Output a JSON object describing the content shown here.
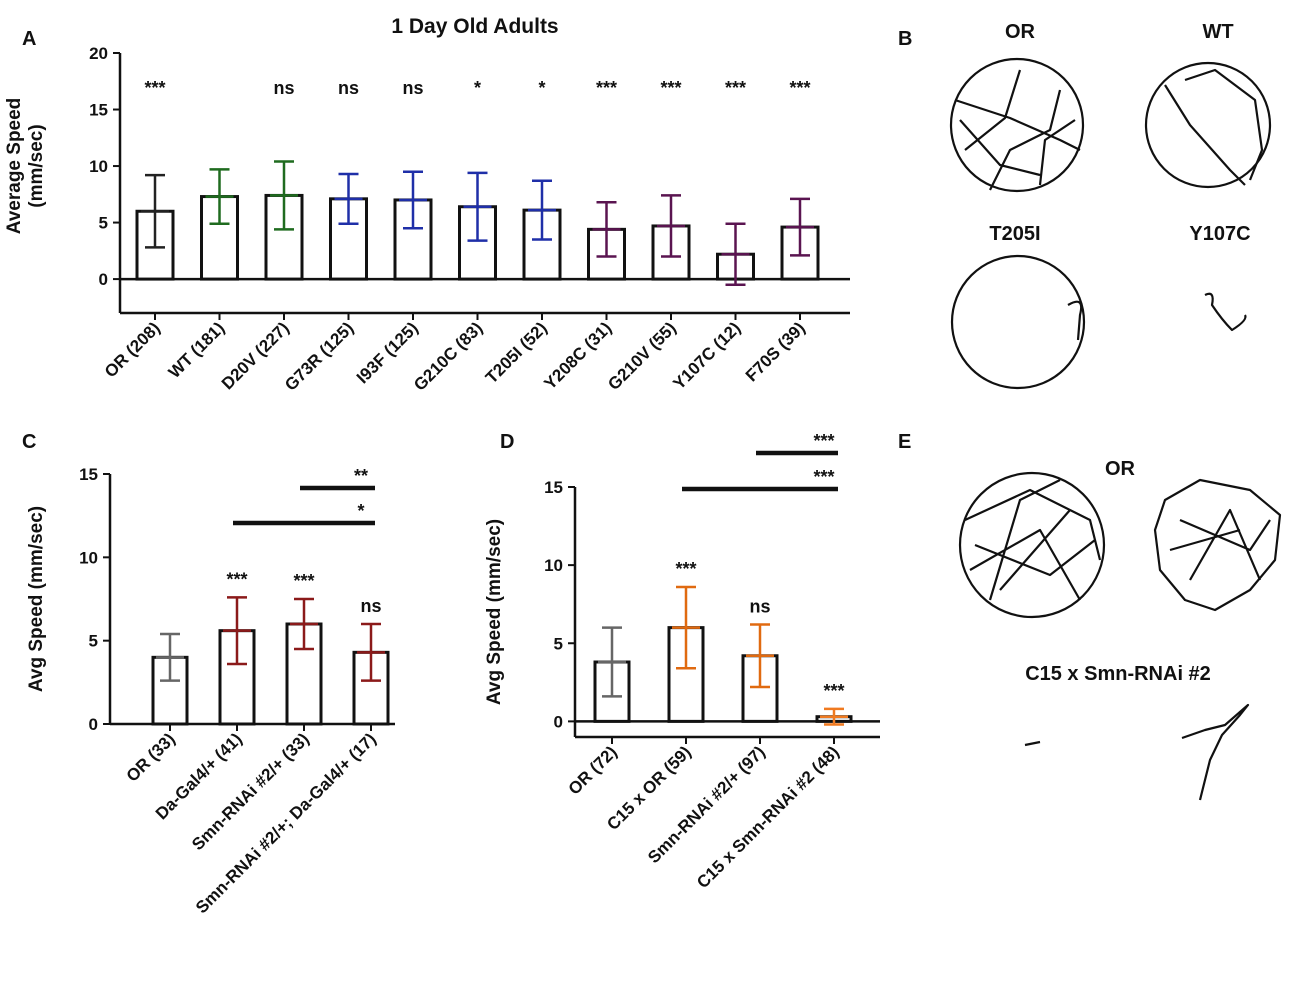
{
  "panel_labels": [
    "A",
    "B",
    "C",
    "D",
    "E"
  ],
  "chart_data": [
    {
      "type": "bar",
      "title": "1 Day Old Adults",
      "ylabel": [
        "Average Speed",
        "(mm/sec)"
      ],
      "categories": [
        "OR (208)",
        "WT (181)",
        "D20V (227)",
        "G73R (125)",
        "I93F (125)",
        "G210C (83)",
        "T205I (52)",
        "Y208C (31)",
        "G210V (55)",
        "Y107C (12)",
        "F70S (39)"
      ],
      "values": [
        6.0,
        7.3,
        7.4,
        7.1,
        7.0,
        6.4,
        6.1,
        4.4,
        4.7,
        2.2,
        4.6
      ],
      "errors": [
        3.2,
        2.4,
        3.0,
        2.2,
        2.5,
        3.0,
        2.6,
        2.4,
        2.7,
        2.7,
        2.5
      ],
      "colors": [
        "#222222",
        "#1f6b1f",
        "#1f6b1f",
        "#1f2fa8",
        "#1f2fa8",
        "#1f2fa8",
        "#1f2fa8",
        "#5a1450",
        "#5a1450",
        "#5a1450",
        "#5a1450"
      ],
      "annotations": [
        "***",
        null,
        "ns",
        "ns",
        "ns",
        "*",
        "*",
        "***",
        "***",
        "***",
        "***"
      ],
      "ylim": [
        -3,
        20
      ],
      "yticks": [
        0,
        5,
        10,
        15,
        20
      ]
    },
    {
      "type": "bar",
      "ylabel": [
        "Avg Speed (mm/sec)"
      ],
      "categories": [
        "OR (33)",
        "Da-Gal4/+ (41)",
        "Smn-RNAi #2/+ (33)",
        "Smn-RNAi #2/+; Da-Gal4/+ (17)"
      ],
      "values": [
        4.0,
        5.6,
        6.0,
        4.3
      ],
      "errors": [
        1.4,
        2.0,
        1.5,
        1.7
      ],
      "colors": [
        "#666666",
        "#8b1a1a",
        "#8b1a1a",
        "#8b1a1a"
      ],
      "annotations": [
        null,
        "***",
        "***",
        "ns"
      ],
      "comparisons": [
        "**",
        "*"
      ],
      "ylim": [
        0,
        15
      ],
      "yticks": [
        0,
        5,
        10,
        15
      ]
    },
    {
      "type": "bar",
      "ylabel": [
        "Avg Speed (mm/sec)"
      ],
      "categories": [
        "OR (72)",
        "C15 x OR (59)",
        "Smn-RNAi #2/+ (97)",
        "C15 x Smn-RNAi #2 (48)"
      ],
      "values": [
        3.8,
        6.0,
        4.2,
        0.3
      ],
      "errors": [
        2.2,
        2.6,
        2.0,
        0.5
      ],
      "colors": [
        "#666666",
        "#e06a10",
        "#e06a10",
        "#f07a20"
      ],
      "annotations": [
        null,
        "***",
        "ns",
        "***"
      ],
      "comparisons": [
        "***",
        "***"
      ],
      "ylim": [
        -1,
        15
      ],
      "yticks": [
        0,
        5,
        10,
        15
      ]
    }
  ],
  "tracks": {
    "B": [
      "OR",
      "WT",
      "T205I",
      "Y107C"
    ],
    "E": [
      "OR",
      "C15 x Smn-RNAi #2"
    ]
  }
}
